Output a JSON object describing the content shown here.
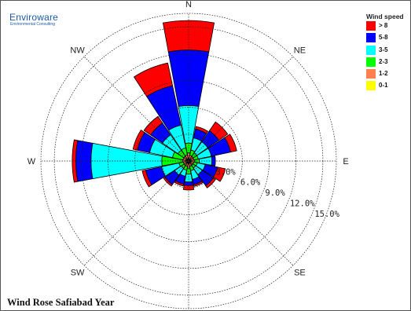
{
  "logo": {
    "name": "Enviroware",
    "tagline": "Environmental Consulting"
  },
  "footer_title": "Wind Rose Safiabad Year",
  "chart_data": {
    "type": "windrose",
    "title": "Wind Rose Safiabad Year",
    "directions": [
      "N",
      "NNE",
      "NE",
      "ENE",
      "E",
      "ESE",
      "SE",
      "SSE",
      "S",
      "SSW",
      "SW",
      "WSW",
      "W",
      "WNW",
      "NW",
      "NNW"
    ],
    "compass_labels": [
      "N",
      "NE",
      "E",
      "SE",
      "S",
      "SW",
      "W",
      "NW"
    ],
    "rings": [
      3,
      6,
      9,
      12,
      15
    ],
    "ring_labels": [
      "3.0%",
      "6.0%",
      "9.0%",
      "12.0%",
      "15.0%"
    ],
    "rmax": 16.5,
    "legend": {
      "title": "Wind speed",
      "entries": [
        {
          "label": "> 8",
          "color": "#ff0000"
        },
        {
          "label": "5-8",
          "color": "#0000ff"
        },
        {
          "label": "3-5",
          "color": "#00ffff"
        },
        {
          "label": "2-3",
          "color": "#00ff00"
        },
        {
          "label": "1-2",
          "color": "#ff7f50"
        },
        {
          "label": "0-1",
          "color": "#ffff00"
        }
      ]
    },
    "series": [
      {
        "name": "0-1",
        "values": [
          0.3,
          0.25,
          0.25,
          0.25,
          0.3,
          0.25,
          0.25,
          0.25,
          0.3,
          0.25,
          0.25,
          0.25,
          0.3,
          0.25,
          0.25,
          0.25
        ]
      },
      {
        "name": "1-2",
        "values": [
          0.6,
          0.4,
          0.35,
          0.35,
          0.4,
          0.35,
          0.3,
          0.35,
          0.5,
          0.35,
          0.35,
          0.35,
          0.4,
          0.4,
          0.4,
          0.45
        ]
      },
      {
        "name": "2-3",
        "values": [
          1.1,
          0.6,
          0.5,
          0.5,
          0.5,
          0.4,
          0.4,
          0.5,
          0.65,
          0.45,
          0.4,
          0.5,
          2.3,
          1.2,
          0.8,
          0.8
        ]
      },
      {
        "name": "3-5",
        "values": [
          4.2,
          1.4,
          1.5,
          1.5,
          1.4,
          0.9,
          0.9,
          1.0,
          0.9,
          0.7,
          0.9,
          2.0,
          7.9,
          2.6,
          2.1,
          2.6
        ]
      },
      {
        "name": "5-8",
        "values": [
          6.2,
          1.0,
          1.5,
          2.2,
          0.4,
          1.4,
          1.5,
          0.6,
          0.4,
          0.9,
          1.3,
          1.8,
          1.7,
          1.4,
          1.6,
          4.5
        ]
      },
      {
        "name": "> 8",
        "values": [
          3.3,
          0.3,
          1.2,
          0.7,
          0.0,
          0.9,
          0.3,
          0.2,
          0.5,
          0.2,
          0.2,
          0.4,
          0.4,
          0.5,
          0.9,
          2.6
        ]
      }
    ]
  }
}
